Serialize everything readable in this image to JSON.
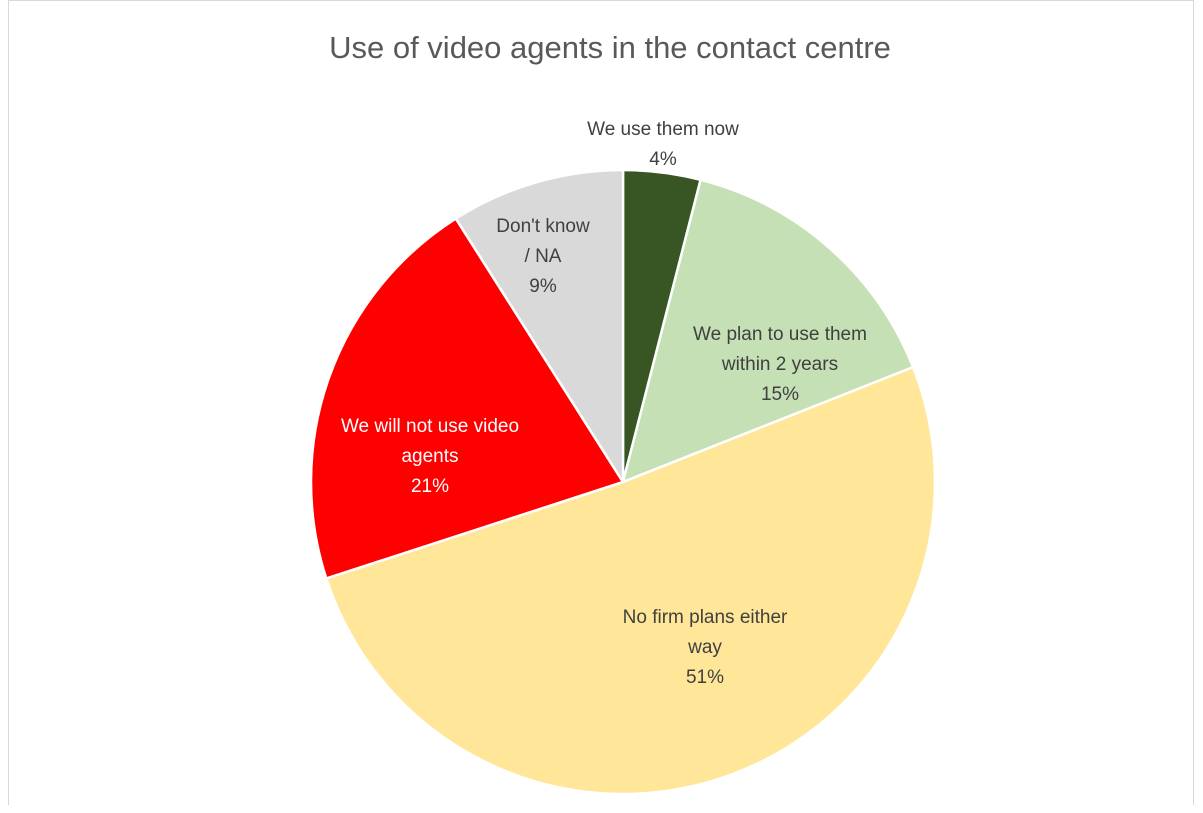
{
  "chart_data": {
    "type": "pie",
    "title": "Use of video agents in the contact centre",
    "start_angle_deg": 0,
    "direction": "clockwise",
    "slices": [
      {
        "name": "We use them now",
        "label_lines": [
          "We use them now"
        ],
        "value": 4,
        "label": "4%",
        "color": "#375623",
        "label_color": "#404040"
      },
      {
        "name": "We plan to use them within 2 years",
        "label_lines": [
          "We plan to use them",
          "within 2 years"
        ],
        "value": 15,
        "label": "15%",
        "color": "#C5E0B4",
        "label_color": "#404040"
      },
      {
        "name": "No firm plans either way",
        "label_lines": [
          "No firm plans either",
          "way"
        ],
        "value": 51,
        "label": "51%",
        "color": "#FFE699",
        "label_color": "#404040"
      },
      {
        "name": "We will not use video agents",
        "label_lines": [
          "We will not use video",
          "agents"
        ],
        "value": 21,
        "label": "21%",
        "color": "#FF0000",
        "label_color": "#FFFFFF"
      },
      {
        "name": "Don't know / NA",
        "label_lines": [
          "Don't know",
          "/ NA"
        ],
        "value": 9,
        "label": "9%",
        "color": "#D9D9D9",
        "label_color": "#404040"
      }
    ]
  }
}
